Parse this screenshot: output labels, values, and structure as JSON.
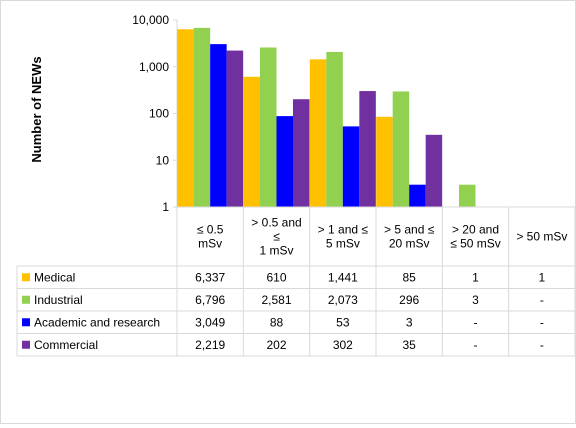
{
  "chart_data": {
    "type": "bar",
    "scale": "log",
    "ylabel": "Number of NEWs",
    "ylim": [
      1,
      10000
    ],
    "y_ticks": [
      "10,000",
      "1,000",
      "100",
      "10",
      "1"
    ],
    "y_tick_values": [
      10000,
      1000,
      100,
      10,
      1
    ],
    "categories": [
      [
        "≤ 0.5",
        "mSv"
      ],
      [
        "> 0.5 and",
        "≤",
        "1 mSv"
      ],
      [
        "> 1 and ≤",
        "5 mSv"
      ],
      [
        "> 5 and ≤",
        "20 mSv"
      ],
      [
        "> 20 and",
        "≤ 50 mSv"
      ],
      [
        "> 50 mSv"
      ]
    ],
    "legend_position": "data-table",
    "grid": false,
    "series": [
      {
        "name": "Medical",
        "color": "#FFC000",
        "values": [
          6337,
          610,
          1441,
          85,
          1,
          1
        ],
        "labels": [
          "6,337",
          "610",
          "1,441",
          "85",
          "1",
          "1"
        ]
      },
      {
        "name": "Industrial",
        "color": "#92D050",
        "values": [
          6796,
          2581,
          2073,
          296,
          3,
          null
        ],
        "labels": [
          "6,796",
          "2,581",
          "2,073",
          "296",
          "3",
          "-"
        ]
      },
      {
        "name": "Academic and research",
        "color": "#0000FF",
        "values": [
          3049,
          88,
          53,
          3,
          null,
          null
        ],
        "labels": [
          "3,049",
          "88",
          "53",
          "3",
          "-",
          "-"
        ]
      },
      {
        "name": "Commercial",
        "color": "#7030A0",
        "values": [
          2219,
          202,
          302,
          35,
          null,
          null
        ],
        "labels": [
          "2,219",
          "202",
          "302",
          "35",
          "-",
          "-"
        ]
      }
    ]
  }
}
